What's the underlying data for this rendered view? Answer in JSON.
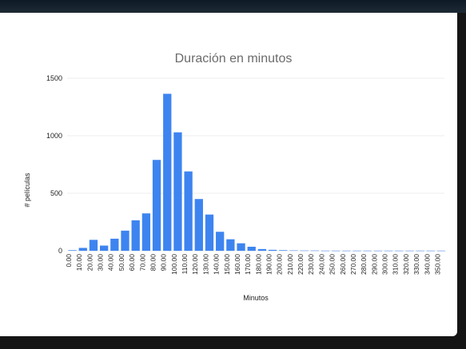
{
  "chart_data": {
    "type": "bar",
    "title": "Duración en minutos",
    "xlabel": "Minutos",
    "ylabel": "# películas",
    "ylim": [
      0,
      1500
    ],
    "yticks": [
      "0",
      "500",
      "1000",
      "1500"
    ],
    "categories": [
      "0.00",
      "10.00",
      "20.00",
      "30.00",
      "40.00",
      "50.00",
      "60.00",
      "70.00",
      "80.00",
      "90.00",
      "100.00",
      "110.00",
      "120.00",
      "130.00",
      "140.00",
      "150.00",
      "160.00",
      "170.00",
      "180.00",
      "190.00",
      "200.00",
      "210.00",
      "220.00",
      "230.00",
      "240.00",
      "250.00",
      "260.00",
      "270.00",
      "280.00",
      "290.00",
      "300.00",
      "310.00",
      "320.00",
      "330.00",
      "340.00",
      "350.00"
    ],
    "values": [
      5,
      25,
      95,
      45,
      105,
      175,
      265,
      325,
      790,
      1365,
      1030,
      690,
      450,
      315,
      165,
      100,
      65,
      35,
      15,
      8,
      5,
      3,
      2,
      2,
      1,
      1,
      1,
      1,
      1,
      1,
      1,
      1,
      1,
      1,
      1,
      1
    ],
    "color": "#3d84f0",
    "grid": true,
    "legend": "none"
  }
}
